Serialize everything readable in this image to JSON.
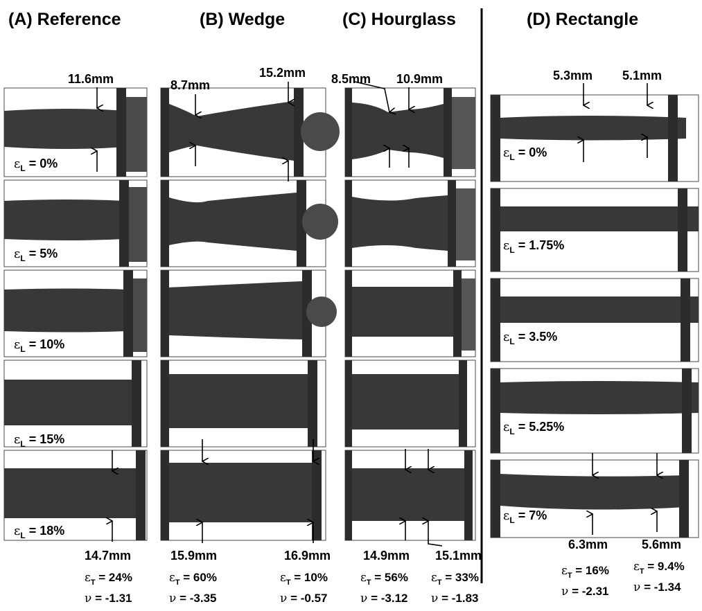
{
  "panels": [
    {
      "key": "A",
      "title": "(A) Reference",
      "strains": [
        "ε",
        "ε",
        "ε",
        "ε",
        "ε"
      ],
      "strain_values": [
        "= 0%",
        "= 5%",
        "= 10%",
        "= 15%",
        "= 18%"
      ]
    },
    {
      "key": "B",
      "title": "(B) Wedge"
    },
    {
      "key": "C",
      "title": "(C) Hourglass"
    },
    {
      "key": "D",
      "title": "(D) Rectangle",
      "strain_values": [
        "= 0%",
        "= 1.75%",
        "= 3.5%",
        "= 5.25%",
        "= 7%"
      ]
    }
  ],
  "strain_symbol": "ε",
  "strain_sub_L": "L",
  "strain_sub_T": "T",
  "nu_symbol": "ν",
  "top_dims": {
    "a": "11.6mm",
    "b1": "8.7mm",
    "b2": "15.2mm",
    "c1": "8.5mm",
    "c2": "10.9mm",
    "d1": "5.3mm",
    "d2": "5.1mm"
  },
  "bottom_dims": {
    "a": "14.7mm",
    "b1": "15.9mm",
    "b2": "16.9mm",
    "c1": "14.9mm",
    "c2": "15.1mm",
    "d1": "6.3mm",
    "d2": "5.6mm"
  },
  "results": {
    "a_et": "= 24%",
    "a_nu": "= -1.31",
    "b1_et": "= 60%",
    "b1_nu": "= -3.35",
    "b2_et": "= 10%",
    "b2_nu": "= -0.57",
    "c1_et": "= 56%",
    "c1_nu": "= -3.12",
    "c2_et": "= 33%",
    "c2_nu": "= -1.83",
    "d1_et": "= 16%",
    "d1_nu": "= -2.31",
    "d2_et": "= 9.4%",
    "d2_nu": "= -1.34"
  }
}
